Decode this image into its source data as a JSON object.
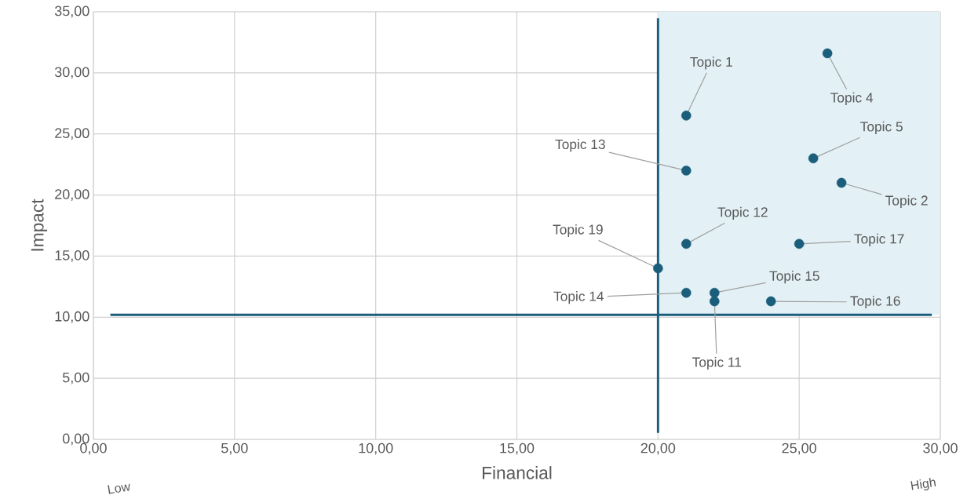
{
  "chart_data": {
    "type": "scatter",
    "xlabel": "Financial",
    "ylabel": "Impact",
    "series": [
      {
        "color": "#1b5e7b",
        "x": [
          21,
          26.5,
          26,
          25.5,
          21,
          21,
          25,
          20,
          21,
          22,
          22,
          24
        ],
        "values": [
          26.5,
          21,
          31.6,
          23,
          22,
          16,
          16,
          14,
          12,
          12,
          11.3,
          11.3
        ]
      }
    ],
    "annotations": [
      {
        "text": "Topic 1",
        "x": 21,
        "y": 26.5
      },
      {
        "text": "Topic 2",
        "x": 26.5,
        "y": 21
      },
      {
        "text": "Topic 4",
        "x": 26,
        "y": 31.6
      },
      {
        "text": "Topic 5",
        "x": 25.5,
        "y": 23
      },
      {
        "text": "Topic 13",
        "x": 21,
        "y": 22
      },
      {
        "text": "Topic 12",
        "x": 21,
        "y": 16
      },
      {
        "text": "Topic 17",
        "x": 25,
        "y": 16
      },
      {
        "text": "Topic 19",
        "x": 20,
        "y": 14
      },
      {
        "text": "Topic 14",
        "x": 21,
        "y": 12
      },
      {
        "text": "Topic 15",
        "x": 22,
        "y": 12
      },
      {
        "text": "Topic 11",
        "x": 22,
        "y": 11.3
      },
      {
        "text": "Topic 16",
        "x": 24,
        "y": 11.3
      },
      "Low",
      "High"
    ],
    "ref_lines": [
      {
        "axis": "x",
        "value": 20,
        "color": "#1b5e7b"
      },
      {
        "axis": "y",
        "value": 10.2,
        "color": "#1b5e7b"
      }
    ],
    "bands": [
      {
        "axis": "x",
        "from": 20,
        "to": 30,
        "color": "#e3f1f6"
      }
    ],
    "xlim": [
      0,
      30
    ],
    "ylim": [
      0,
      35
    ],
    "xticks": [
      {
        "value": 0,
        "label": "0,00"
      },
      {
        "value": 5,
        "label": "5,00"
      },
      {
        "value": 10,
        "label": "10,00"
      },
      {
        "value": 15,
        "label": "15,00"
      },
      {
        "value": 20,
        "label": "20,00"
      },
      {
        "value": 25,
        "label": "25,00"
      },
      {
        "value": 30,
        "label": "30,00"
      }
    ],
    "yticks": [
      {
        "value": 0,
        "label": "0,00"
      },
      {
        "value": 5,
        "label": "5,00"
      },
      {
        "value": 10,
        "label": "10,00"
      },
      {
        "value": 15,
        "label": "15,00"
      },
      {
        "value": 20,
        "label": "20,00"
      },
      {
        "value": 25,
        "label": "25,00"
      },
      {
        "value": 30,
        "label": "30,00"
      },
      {
        "value": 35,
        "label": "35,00"
      }
    ],
    "marker": "circle",
    "grid": true
  }
}
